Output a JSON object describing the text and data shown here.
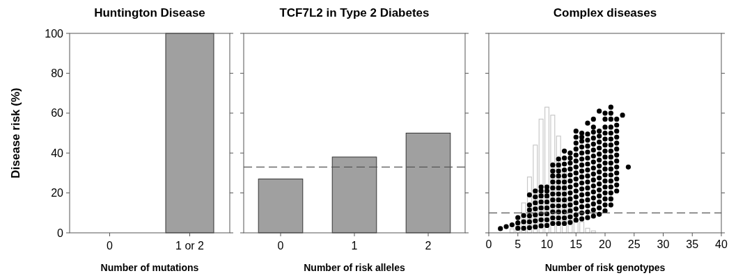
{
  "chart_data": [
    {
      "type": "bar",
      "title": "Huntington Disease",
      "xlabel": "Number of mutations",
      "ylabel": "Disease risk (%)",
      "categories": [
        "0",
        "1 or 2"
      ],
      "series": [
        {
          "color": "#a0a0a0",
          "values": [
            0,
            100
          ]
        }
      ],
      "ylim": [
        0,
        100
      ],
      "yticks": [
        0,
        20,
        40,
        60,
        80,
        100
      ]
    },
    {
      "type": "bar",
      "title": "TCF7L2 in Type 2 Diabetes",
      "xlabel": "Number of risk alleles",
      "categories": [
        "0",
        "1",
        "2"
      ],
      "series": [
        {
          "color": "#a0a0a0",
          "values": [
            27,
            38,
            50
          ]
        }
      ],
      "ylim": [
        0,
        100
      ],
      "yticks": [
        {
          "value": 0,
          "label": null
        },
        {
          "value": 20,
          "label": null
        },
        {
          "value": 40,
          "label": null
        },
        {
          "value": 60,
          "label": null
        },
        {
          "value": 80,
          "label": null
        },
        {
          "value": 100,
          "label": null
        }
      ],
      "tick_labels": "x",
      "ref_lines": [
        {
          "axis": "y",
          "value": 33,
          "line_style": "dashed",
          "color": "#555555"
        }
      ]
    },
    {
      "type": "scatter",
      "title": "Complex diseases",
      "xlabel": "Number of risk genotypes",
      "marker": "circle",
      "series": [
        {
          "type": "histogram",
          "color": "#c8c8c8",
          "bins": [
            3.5,
            4.5,
            5.5,
            6.5,
            7.5,
            8.5,
            9.5,
            10.5,
            11.5,
            12.5,
            13.5,
            14.5,
            15.5,
            16.5,
            17.5,
            18.5
          ],
          "values": [
            2,
            5,
            15,
            28,
            44,
            57,
            63,
            59,
            48.5,
            32,
            16,
            7,
            5.5,
            2.3,
            1
          ]
        },
        {
          "color": "#000000",
          "x": [
            2,
            3,
            4,
            5,
            5,
            5,
            6,
            6,
            6,
            7,
            7,
            7,
            7,
            7,
            7,
            8,
            8,
            8,
            8,
            8,
            8,
            8,
            9,
            9,
            9,
            9,
            9,
            9,
            9,
            9,
            10,
            10,
            10,
            10,
            10,
            10,
            10,
            10,
            11,
            11,
            11,
            11,
            11,
            11,
            11,
            11,
            11,
            11,
            11,
            12,
            12,
            12,
            12,
            12,
            12,
            12,
            12,
            12,
            12,
            12,
            12,
            13,
            13,
            13,
            13,
            13,
            13,
            13,
            13,
            13,
            13,
            13,
            13,
            13,
            14,
            14,
            14,
            14,
            14,
            14,
            14,
            14,
            14,
            14,
            14,
            14,
            14,
            15,
            15,
            15,
            15,
            15,
            15,
            15,
            15,
            15,
            15,
            15,
            15,
            15,
            15,
            15,
            15,
            16,
            16,
            16,
            16,
            16,
            16,
            16,
            16,
            16,
            16,
            16,
            16,
            16,
            16,
            16,
            16,
            17,
            17,
            17,
            17,
            17,
            17,
            17,
            17,
            17,
            17,
            17,
            17,
            17,
            17,
            17,
            17,
            18,
            18,
            18,
            18,
            18,
            18,
            18,
            18,
            18,
            18,
            18,
            18,
            18,
            18,
            18,
            18,
            18,
            19,
            19,
            19,
            19,
            19,
            19,
            19,
            19,
            19,
            19,
            19,
            19,
            19,
            19,
            19,
            19,
            20,
            20,
            20,
            20,
            20,
            20,
            20,
            20,
            20,
            20,
            20,
            20,
            20,
            20,
            20,
            20,
            20,
            21,
            21,
            21,
            21,
            21,
            21,
            21,
            21,
            21,
            21,
            21,
            21,
            21,
            21,
            21,
            21,
            21,
            22,
            22,
            22,
            22,
            22,
            22,
            22,
            22,
            22,
            22,
            22,
            22,
            22,
            23,
            24
          ],
          "values": [
            2.1,
            3.1,
            4,
            2.3,
            5,
            7.6,
            2.3,
            5.5,
            8.7,
            2.6,
            5.5,
            8.5,
            11.5,
            14,
            19,
            3,
            6,
            9,
            12,
            15,
            18,
            21,
            3.5,
            6.5,
            9.5,
            12.5,
            15.5,
            18.5,
            21,
            23,
            3.7,
            6.5,
            9.5,
            12.5,
            15.5,
            18.5,
            21,
            23,
            4.7,
            7.5,
            10.5,
            13.5,
            16.5,
            19.5,
            22.5,
            25.5,
            28.5,
            31,
            34,
            4.7,
            7.5,
            10.5,
            13.5,
            16.5,
            19.5,
            22.5,
            25.5,
            28.5,
            31,
            34,
            37,
            4.7,
            7.5,
            10.5,
            13.5,
            16.5,
            19.5,
            22.5,
            25.5,
            28.5,
            31.5,
            34.5,
            37.5,
            41,
            5.2,
            8,
            11,
            14,
            17,
            20,
            23,
            26,
            29,
            32,
            35,
            37.5,
            40,
            6.4,
            9,
            12,
            15,
            18,
            21,
            24,
            27,
            30,
            33,
            36,
            39,
            42,
            45,
            48,
            51,
            7,
            10,
            13,
            16,
            19,
            22,
            25,
            28,
            31,
            34,
            37,
            40,
            43,
            46,
            48,
            50,
            7.6,
            10.5,
            13.5,
            16.5,
            19.5,
            22.5,
            25.5,
            28.5,
            31.5,
            34.5,
            37.5,
            40.5,
            43.5,
            46.5,
            49.5,
            55,
            8.4,
            11.5,
            14.5,
            17.5,
            20.5,
            23.5,
            26.5,
            29.5,
            32.5,
            35.5,
            38.5,
            41.5,
            44.5,
            47.5,
            50.5,
            53,
            57,
            9.3,
            12.5,
            15.5,
            18.5,
            21.5,
            24.5,
            27.5,
            30.5,
            33.5,
            36.5,
            39.5,
            42.5,
            45.5,
            48.5,
            51,
            61,
            11,
            14,
            17,
            20,
            23,
            26,
            29,
            32,
            35,
            38,
            41,
            44,
            47,
            50,
            53,
            57,
            60,
            14,
            17,
            20,
            23,
            26,
            29,
            32,
            35,
            38,
            41,
            44,
            47,
            50,
            53,
            57,
            60,
            63,
            21,
            24,
            27,
            30,
            33,
            36,
            39,
            42,
            45,
            48,
            51,
            54,
            57,
            59,
            33
          ]
        }
      ],
      "xlim": [
        0,
        40
      ],
      "xticks": [
        0,
        5,
        10,
        15,
        20,
        25,
        30,
        35,
        40
      ],
      "ylim": [
        0,
        100
      ],
      "yticks": [
        {
          "value": 0,
          "label": null
        },
        {
          "value": 20,
          "label": null
        },
        {
          "value": 40,
          "label": null
        },
        {
          "value": 60,
          "label": null
        },
        {
          "value": 80,
          "label": null
        },
        {
          "value": 100,
          "label": null
        }
      ],
      "tick_labels": "x",
      "ref_lines": [
        {
          "axis": "y",
          "value": 10,
          "line_style": "dashed",
          "color": "#555555"
        }
      ]
    }
  ]
}
